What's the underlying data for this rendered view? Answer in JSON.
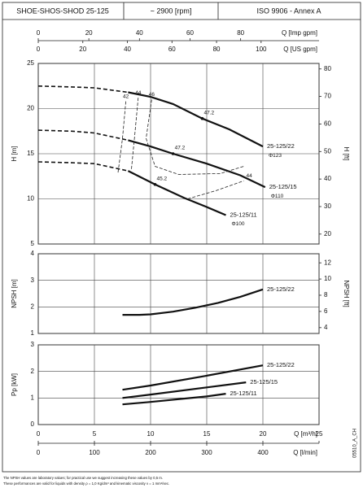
{
  "header": {
    "model": "SHOE-SHOS-SHOD 25-125",
    "speed": "~ 2900 [rpm]",
    "standard": "ISO 9906 - Annex A"
  },
  "x_axes": [
    {
      "label": "Q [Imp gpm]",
      "xlim": [
        0,
        111
      ],
      "xticks": [
        0,
        20,
        40,
        60,
        80
      ],
      "position": "top-1"
    },
    {
      "label": "Q [US gpm]",
      "xlim": [
        0,
        126
      ],
      "xticks": [
        0,
        20,
        40,
        60,
        80,
        100
      ],
      "position": "top-2"
    },
    {
      "label": "Q [m³/h]",
      "xlim": [
        0,
        25
      ],
      "xticks": [
        0,
        5,
        10,
        15,
        20,
        25
      ],
      "position": "bottom-1"
    },
    {
      "label": "Q [l/min]",
      "xlim": [
        0,
        500
      ],
      "xticks": [
        0,
        100,
        200,
        300,
        400
      ],
      "position": "bottom-2"
    }
  ],
  "chart_data": [
    {
      "type": "line",
      "ylabel": "H [m]",
      "y2label": "H [ft]",
      "xlim": [
        0,
        25
      ],
      "xticks": [
        0,
        5,
        10,
        15,
        20,
        25
      ],
      "ylim": [
        5,
        25
      ],
      "yticks": [
        5,
        10,
        15,
        20,
        25
      ],
      "y2lim": [
        16.4,
        82
      ],
      "y2ticks": [
        20,
        30,
        40,
        50,
        60,
        70,
        80
      ],
      "grid": true,
      "series": [
        {
          "name": "25-125/22",
          "sublabel": "Φ123",
          "color": "#111111",
          "x": [
            8,
            10,
            12,
            14.6,
            17,
            20
          ],
          "values": [
            21.8,
            21.3,
            20.5,
            18.9,
            17.7,
            15.8
          ],
          "extrapolated": {
            "x": [
              0,
              3,
              5,
              8
            ],
            "values": [
              22.5,
              22.4,
              22.3,
              21.8
            ]
          }
        },
        {
          "name": "25-125/15",
          "sublabel": "Φ110",
          "color": "#111111",
          "x": [
            8,
            10,
            12,
            15,
            18,
            20.2
          ],
          "values": [
            16.5,
            15.8,
            15.0,
            13.9,
            12.6,
            11.3
          ],
          "extrapolated": {
            "x": [
              0,
              3,
              5,
              8
            ],
            "values": [
              17.6,
              17.5,
              17.3,
              16.5
            ]
          }
        },
        {
          "name": "25-125/11",
          "sublabel": "Φ100",
          "color": "#111111",
          "x": [
            8,
            10.4,
            13,
            15,
            16.7
          ],
          "values": [
            13.1,
            11.6,
            10.1,
            9.1,
            8.2
          ],
          "extrapolated": {
            "x": [
              0,
              3,
              5,
              8
            ],
            "values": [
              14.1,
              14.0,
              13.9,
              13.1
            ]
          }
        }
      ],
      "efficiency_curves": [
        {
          "name": "42",
          "x": [
            7.8,
            7.5,
            7.1
          ],
          "values": [
            20.8,
            16.7,
            12.9
          ]
        },
        {
          "name": "44",
          "x": [
            8.9,
            8.6,
            8.3
          ],
          "values": [
            21.2,
            17.2,
            13.3
          ]
        },
        {
          "name": "46",
          "x": [
            10.1,
            9.6,
            10.4,
            12.5,
            16.2,
            18.3
          ],
          "values": [
            21.0,
            16.7,
            13.6,
            12.7,
            12.8,
            13.6
          ]
        },
        {
          "name": "44",
          "x": [
            13.3,
            15.8,
            18.3
          ],
          "values": [
            10.0,
            10.9,
            12.0
          ]
        }
      ],
      "efficiency_points": [
        {
          "label": "47.2",
          "x": 14.6,
          "y": 18.9
        },
        {
          "label": "47.2",
          "x": 12,
          "y": 15.0
        },
        {
          "label": "45.2",
          "x": 10.4,
          "y": 11.6
        }
      ]
    },
    {
      "type": "line",
      "ylabel": "NPSH [m]",
      "y2label": "NPSH [ft]",
      "xlim": [
        0,
        25
      ],
      "xticks": [
        0,
        5,
        10,
        15,
        20,
        25
      ],
      "ylim": [
        1,
        4
      ],
      "yticks": [
        1,
        2,
        3,
        4
      ],
      "y2lim": [
        3.28,
        13.12
      ],
      "y2ticks": [
        4,
        6,
        8,
        10,
        12
      ],
      "grid": true,
      "series": [
        {
          "name": "25-125/22",
          "color": "#111111",
          "x": [
            7.5,
            9,
            10,
            12,
            14,
            16,
            18,
            20
          ],
          "values": [
            1.7,
            1.7,
            1.72,
            1.82,
            1.97,
            2.15,
            2.38,
            2.66
          ]
        }
      ]
    },
    {
      "type": "line",
      "ylabel": "Pp [kW]",
      "xlim": [
        0,
        25
      ],
      "xticks": [
        0,
        5,
        10,
        15,
        20,
        25
      ],
      "ylim": [
        0,
        3
      ],
      "yticks": [
        0,
        1,
        2,
        3
      ],
      "grid": true,
      "series": [
        {
          "name": "25-125/22",
          "color": "#111111",
          "x": [
            7.5,
            10,
            15,
            20
          ],
          "values": [
            1.31,
            1.47,
            1.84,
            2.23
          ]
        },
        {
          "name": "25-125/15",
          "color": "#111111",
          "x": [
            7.5,
            10,
            15,
            18.5
          ],
          "values": [
            1.0,
            1.13,
            1.4,
            1.59
          ]
        },
        {
          "name": "25-125/11",
          "color": "#111111",
          "x": [
            7.5,
            10,
            15,
            16.7
          ],
          "values": [
            0.76,
            0.85,
            1.06,
            1.16
          ]
        }
      ]
    }
  ],
  "notes": [
    "The NPSH values are laboratory values; for practical use we suggest increasing these values by 0,5 m.",
    "These performances are valid for liquids with density ρ = 1,0 Kg/dm³ and kinematic viscosity ν = 1 mm²/sec."
  ],
  "code": "05510_A_CH"
}
